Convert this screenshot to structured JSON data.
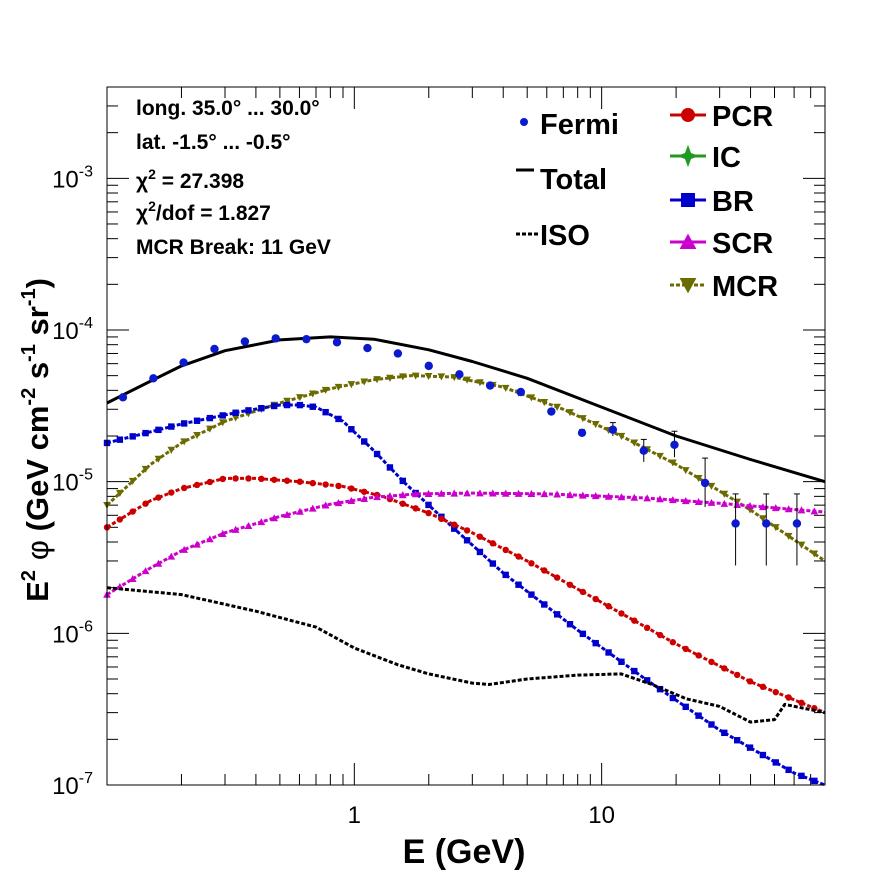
{
  "chart_data": {
    "type": "line",
    "xscale": "log",
    "yscale": "log",
    "xlim": [
      0.1,
      80
    ],
    "ylim": [
      1e-07,
      0.004
    ],
    "xlabel": "E (GeV)",
    "ylabel": {
      "prefix": "E",
      "sup1": "2",
      "phi": "φ",
      "open": " (GeV cm",
      "sup2": "-2",
      "mid1": " s",
      "sup3": "-1",
      "mid2": " sr",
      "sup4": "-1",
      "close": ")"
    },
    "x_ticks": [
      {
        "value": 1,
        "label": "1"
      },
      {
        "value": 10,
        "label": "10"
      }
    ],
    "y_ticks": [
      {
        "value": 1e-07,
        "base": "10",
        "exp": "-7"
      },
      {
        "value": 1e-06,
        "base": "10",
        "exp": "-6"
      },
      {
        "value": 1e-05,
        "base": "10",
        "exp": "-5"
      },
      {
        "value": 0.0001,
        "base": "10",
        "exp": "-4"
      },
      {
        "value": 0.001,
        "base": "10",
        "exp": "-3"
      }
    ],
    "info": {
      "line1": "long. 35.0° ... 30.0°",
      "line2": "lat. -1.5° ... -0.5°",
      "chi": "χ",
      "chi_sup": "2",
      "chi2": " = 27.398",
      "chi2dof": "/dof = 1.827",
      "mcr_break": "MCR Break: 11 GeV"
    },
    "legend_left": [
      {
        "label": "Fermi",
        "style": "point",
        "color": "#0a1acc"
      },
      {
        "label": "Total",
        "style": "solid",
        "color": "#000000"
      },
      {
        "label": "ISO",
        "style": "dotted",
        "color": "#000000"
      }
    ],
    "legend_right": [
      {
        "label": "PCR",
        "style": "circle",
        "color": "#cc0000"
      },
      {
        "label": "IC",
        "style": "star",
        "color": "#229922"
      },
      {
        "label": "BR",
        "style": "square",
        "color": "#0000cc"
      },
      {
        "label": "SCR",
        "style": "triangle-up",
        "color": "#cc00cc"
      },
      {
        "label": "MCR",
        "style": "triangle-down",
        "color": "#6b6b00"
      }
    ],
    "fermi": {
      "x": [
        0.116,
        0.154,
        0.204,
        0.272,
        0.361,
        0.481,
        0.64,
        0.851,
        1.13,
        1.5,
        2.0,
        2.66,
        3.54,
        4.71,
        6.26,
        8.33,
        11.1,
        14.8,
        19.7,
        26.2,
        34.8,
        46.3,
        61.6
      ],
      "y": [
        3.6e-05,
        4.8e-05,
        6.1e-05,
        7.5e-05,
        8.4e-05,
        8.8e-05,
        8.7e-05,
        8.3e-05,
        7.6e-05,
        7e-05,
        5.8e-05,
        5.1e-05,
        4.3e-05,
        3.9e-05,
        2.9e-05,
        2.1e-05,
        2.2e-05,
        1.6e-05,
        1.75e-05,
        9.8e-06,
        5.3e-06,
        5.3e-06,
        5.3e-06
      ],
      "err_lo": [
        0,
        0,
        0,
        0,
        0,
        0,
        0,
        0,
        0,
        0,
        0,
        0,
        0,
        0,
        0,
        1e-06,
        2e-06,
        2.5e-06,
        3e-06,
        3e-06,
        2.5e-06,
        2.5e-06,
        2.5e-06
      ],
      "err_hi": [
        0,
        0,
        0,
        0,
        0,
        0,
        0,
        0,
        0,
        0,
        0,
        0,
        0,
        0,
        0,
        1e-06,
        2.5e-06,
        3e-06,
        4e-06,
        4.5e-06,
        3e-06,
        3e-06,
        3e-06
      ]
    },
    "series": [
      {
        "name": "Total",
        "color": "#000000",
        "dash": "solid",
        "marker": "none",
        "x": [
          0.1,
          0.15,
          0.2,
          0.3,
          0.5,
          0.8,
          1.2,
          2.0,
          3.0,
          5.0,
          10,
          20,
          40,
          80
        ],
        "y": [
          3.3e-05,
          4.6e-05,
          5.8e-05,
          7.3e-05,
          8.6e-05,
          9e-05,
          8.7e-05,
          7.4e-05,
          6.2e-05,
          4.8e-05,
          3.1e-05,
          2e-05,
          1.4e-05,
          1e-05
        ]
      },
      {
        "name": "MCR",
        "color": "#6b6b00",
        "dash": "dotted",
        "marker": "triangle-down",
        "x": [
          0.1,
          0.15,
          0.2,
          0.3,
          0.5,
          0.8,
          1.2,
          1.7,
          2.5,
          4.0,
          7.0,
          12,
          20,
          40,
          80
        ],
        "y": [
          7e-06,
          1.3e-05,
          1.8e-05,
          2.5e-05,
          3.3e-05,
          4.1e-05,
          4.7e-05,
          5e-05,
          4.9e-05,
          4.2e-05,
          3e-05,
          2e-05,
          1.3e-05,
          6.5e-06,
          3e-06
        ]
      },
      {
        "name": "BR",
        "color": "#0000cc",
        "dash": "dotted",
        "marker": "square",
        "x": [
          0.1,
          0.2,
          0.35,
          0.5,
          0.6,
          0.7,
          0.9,
          1.2,
          1.6,
          2.5,
          4,
          8,
          15,
          30,
          60,
          80
        ],
        "y": [
          1.8e-05,
          2.4e-05,
          2.9e-05,
          3.2e-05,
          3.2e-05,
          3.1e-05,
          2.5e-05,
          1.6e-05,
          9.8e-06,
          5e-06,
          2.5e-06,
          1.05e-06,
          5e-07,
          2.3e-07,
          1.2e-07,
          1e-07
        ]
      },
      {
        "name": "PCR",
        "color": "#cc0000",
        "dash": "dotted",
        "marker": "circle",
        "x": [
          0.1,
          0.15,
          0.2,
          0.3,
          0.4,
          0.6,
          0.9,
          1.3,
          2.0,
          3.0,
          5.0,
          10,
          20,
          40,
          80
        ],
        "y": [
          5e-06,
          7.5e-06,
          9e-06,
          1.05e-05,
          1.05e-05,
          1e-05,
          9.3e-06,
          8e-06,
          6.2e-06,
          4.6e-06,
          3e-06,
          1.6e-06,
          8.5e-07,
          4.8e-07,
          3e-07
        ]
      },
      {
        "name": "SCR",
        "color": "#cc00cc",
        "dash": "dotted",
        "marker": "triangle-up",
        "x": [
          0.1,
          0.15,
          0.2,
          0.3,
          0.5,
          0.8,
          1.2,
          1.8,
          3.0,
          6.0,
          15,
          30,
          80
        ],
        "y": [
          1.8e-06,
          2.7e-06,
          3.5e-06,
          4.6e-06,
          5.9e-06,
          7.1e-06,
          7.9e-06,
          8.3e-06,
          8.4e-06,
          8.3e-06,
          7.8e-06,
          7.2e-06,
          6.3e-06
        ]
      },
      {
        "name": "ISO",
        "color": "#000000",
        "dash": "dotted",
        "marker": "none",
        "x": [
          0.1,
          0.2,
          0.4,
          0.7,
          1.0,
          1.5,
          2.0,
          3.0,
          3.5,
          5.0,
          8.0,
          12,
          16,
          22,
          30,
          40,
          50,
          55,
          80
        ],
        "y": [
          2e-06,
          1.8e-06,
          1.4e-06,
          1.1e-06,
          8e-07,
          6.2e-07,
          5.4e-07,
          4.7e-07,
          4.6e-07,
          5e-07,
          5.3e-07,
          5.4e-07,
          4.6e-07,
          3.7e-07,
          3.3e-07,
          2.6e-07,
          2.7e-07,
          3.4e-07,
          3e-07
        ]
      }
    ]
  }
}
